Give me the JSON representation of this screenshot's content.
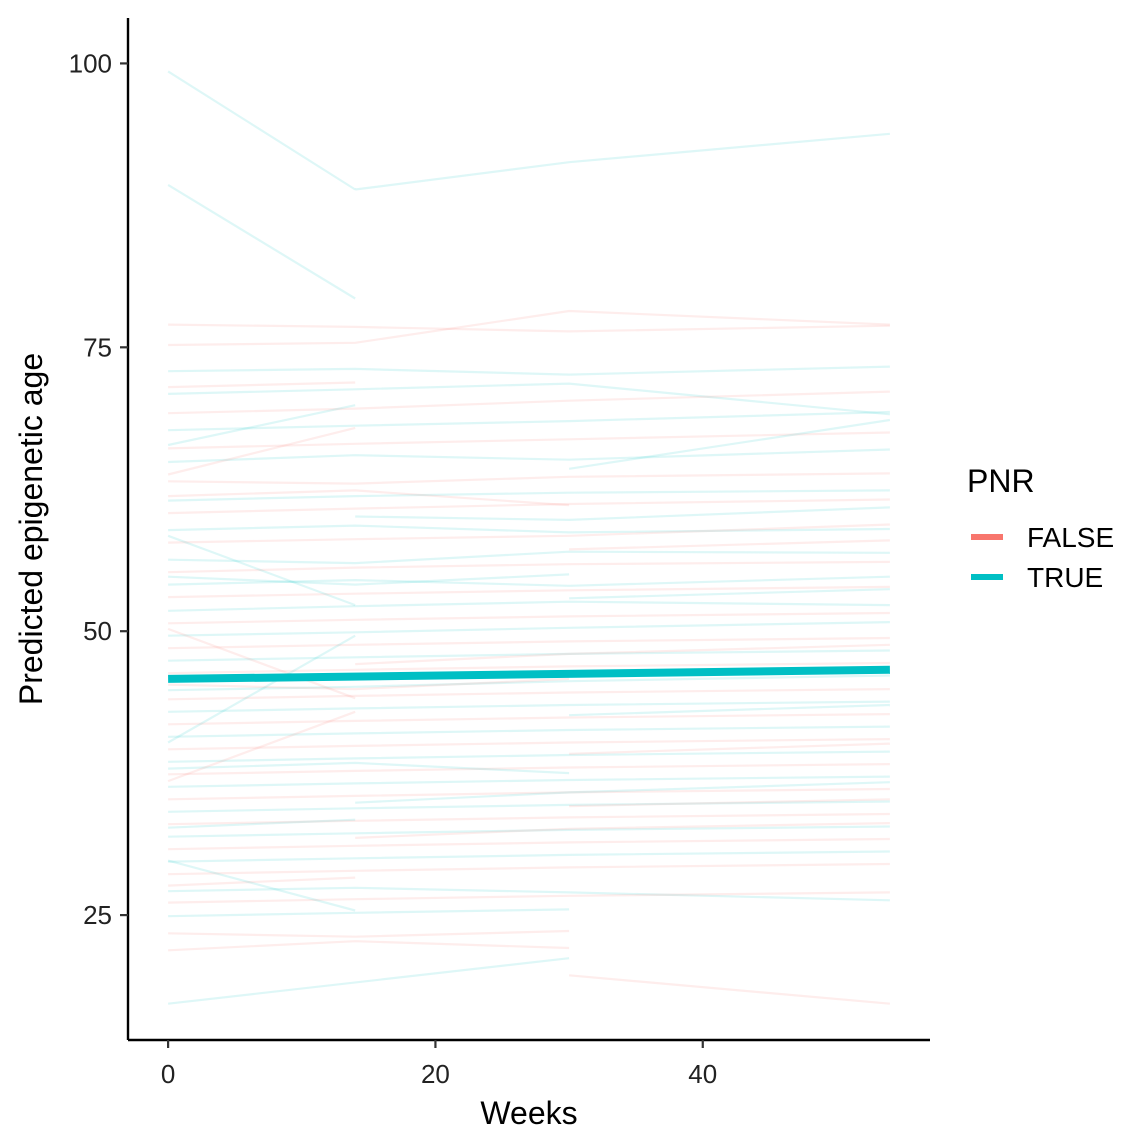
{
  "chart_data": {
    "type": "line",
    "title": "",
    "xlabel": "Weeks",
    "ylabel": "Predicted epigenetic age",
    "xlim": [
      -3,
      57
    ],
    "ylim": [
      14,
      104
    ],
    "x_ticks": [
      0,
      20,
      40
    ],
    "y_ticks": [
      25,
      50,
      75,
      100
    ],
    "grid": false,
    "legend": {
      "title": "PNR",
      "position": "right",
      "entries": [
        {
          "label": "FALSE",
          "color": "#F8766D"
        },
        {
          "label": "TRUE",
          "color": "#00BFC4"
        }
      ]
    },
    "colors": {
      "FALSE": "#F8766D",
      "TRUE": "#00BFC4"
    },
    "visits": [
      0,
      14,
      30,
      54
    ],
    "individual_line_opacity": 0.13,
    "individuals": [
      {
        "group": "TRUE",
        "x": [
          0,
          14
        ],
        "y": [
          99.3,
          88.9
        ]
      },
      {
        "group": "TRUE",
        "x": [
          14,
          30,
          54
        ],
        "y": [
          88.9,
          91.3,
          93.8
        ]
      },
      {
        "group": "TRUE",
        "x": [
          0,
          14
        ],
        "y": [
          89.3,
          79.3
        ]
      },
      {
        "group": "TRUE",
        "x": [
          0,
          30
        ],
        "y": [
          17.2,
          21.2
        ]
      },
      {
        "group": "FALSE",
        "x": [
          30,
          54
        ],
        "y": [
          19.7,
          17.2
        ]
      },
      {
        "group": "FALSE",
        "x": [
          0,
          14,
          30,
          54
        ],
        "y": [
          77.0,
          76.8,
          76.4,
          76.9
        ]
      },
      {
        "group": "FALSE",
        "x": [
          0,
          14,
          30,
          54
        ],
        "y": [
          75.2,
          75.4,
          78.2,
          77.0
        ]
      },
      {
        "group": "TRUE",
        "x": [
          0,
          14,
          30,
          54
        ],
        "y": [
          72.9,
          73.1,
          72.6,
          73.3
        ]
      },
      {
        "group": "TRUE",
        "x": [
          0,
          14,
          30,
          54
        ],
        "y": [
          70.9,
          71.3,
          71.8,
          69.1
        ]
      },
      {
        "group": "FALSE",
        "x": [
          0,
          14,
          30,
          54
        ],
        "y": [
          69.2,
          69.6,
          70.3,
          71.1
        ]
      },
      {
        "group": "TRUE",
        "x": [
          0,
          14,
          30,
          54
        ],
        "y": [
          67.7,
          68.1,
          68.5,
          69.3
        ]
      },
      {
        "group": "FALSE",
        "x": [
          0,
          14,
          30,
          54
        ],
        "y": [
          66.1,
          66.5,
          66.9,
          67.5
        ]
      },
      {
        "group": "TRUE",
        "x": [
          0,
          14,
          30,
          54
        ],
        "y": [
          64.9,
          65.5,
          65.1,
          66.0
        ]
      },
      {
        "group": "FALSE",
        "x": [
          0,
          14,
          30,
          54
        ],
        "y": [
          63.2,
          63.0,
          63.6,
          63.9
        ]
      },
      {
        "group": "TRUE",
        "x": [
          0,
          14,
          30,
          54
        ],
        "y": [
          61.5,
          61.9,
          62.2,
          62.4
        ]
      },
      {
        "group": "FALSE",
        "x": [
          0,
          14,
          30,
          54
        ],
        "y": [
          60.4,
          60.8,
          61.2,
          61.6
        ]
      },
      {
        "group": "TRUE",
        "x": [
          0,
          14,
          30,
          54
        ],
        "y": [
          58.9,
          59.3,
          58.7,
          59.0
        ]
      },
      {
        "group": "FALSE",
        "x": [
          0,
          14,
          30,
          54
        ],
        "y": [
          57.8,
          58.1,
          58.4,
          59.4
        ]
      },
      {
        "group": "TRUE",
        "x": [
          0,
          14,
          30,
          54
        ],
        "y": [
          56.3,
          56.0,
          57.0,
          56.9
        ]
      },
      {
        "group": "FALSE",
        "x": [
          0,
          14,
          30,
          54
        ],
        "y": [
          55.2,
          55.6,
          55.9,
          56.1
        ]
      },
      {
        "group": "TRUE",
        "x": [
          0,
          14,
          30,
          54
        ],
        "y": [
          54.1,
          54.5,
          54.0,
          54.8
        ]
      },
      {
        "group": "FALSE",
        "x": [
          0,
          14,
          30,
          54
        ],
        "y": [
          53.0,
          53.3,
          53.6,
          53.9
        ]
      },
      {
        "group": "TRUE",
        "x": [
          0,
          14,
          30,
          54
        ],
        "y": [
          51.8,
          52.2,
          52.6,
          52.3
        ]
      },
      {
        "group": "FALSE",
        "x": [
          0,
          14,
          30,
          54
        ],
        "y": [
          50.7,
          51.0,
          51.3,
          51.6
        ]
      },
      {
        "group": "TRUE",
        "x": [
          0,
          14,
          30,
          54
        ],
        "y": [
          49.6,
          49.9,
          50.3,
          50.8
        ]
      },
      {
        "group": "FALSE",
        "x": [
          0,
          14,
          30,
          54
        ],
        "y": [
          48.5,
          48.8,
          49.1,
          49.4
        ]
      },
      {
        "group": "TRUE",
        "x": [
          0,
          14,
          30,
          54
        ],
        "y": [
          47.4,
          47.7,
          48.0,
          48.3
        ]
      },
      {
        "group": "FALSE",
        "x": [
          0,
          14,
          30,
          54
        ],
        "y": [
          46.3,
          46.6,
          46.9,
          47.2
        ]
      },
      {
        "group": "TRUE",
        "x": [
          0,
          14,
          30,
          54
        ],
        "y": [
          44.8,
          45.1,
          45.6,
          46.1
        ]
      },
      {
        "group": "FALSE",
        "x": [
          0,
          14,
          30,
          54
        ],
        "y": [
          44.0,
          44.3,
          44.6,
          44.9
        ]
      },
      {
        "group": "TRUE",
        "x": [
          0,
          14,
          30,
          54
        ],
        "y": [
          42.9,
          43.2,
          43.5,
          43.8
        ]
      },
      {
        "group": "FALSE",
        "x": [
          0,
          14,
          30,
          54
        ],
        "y": [
          41.8,
          42.1,
          42.4,
          42.7
        ]
      },
      {
        "group": "TRUE",
        "x": [
          0,
          14,
          30,
          54
        ],
        "y": [
          40.7,
          41.0,
          41.3,
          41.6
        ]
      },
      {
        "group": "FALSE",
        "x": [
          0,
          14,
          30,
          54
        ],
        "y": [
          39.6,
          39.9,
          40.2,
          40.5
        ]
      },
      {
        "group": "TRUE",
        "x": [
          0,
          14,
          30,
          54
        ],
        "y": [
          38.5,
          38.8,
          39.1,
          39.4
        ]
      },
      {
        "group": "FALSE",
        "x": [
          0,
          14,
          30,
          54
        ],
        "y": [
          37.4,
          37.7,
          38.0,
          38.3
        ]
      },
      {
        "group": "TRUE",
        "x": [
          0,
          14,
          30,
          54
        ],
        "y": [
          36.3,
          36.6,
          36.9,
          37.2
        ]
      },
      {
        "group": "FALSE",
        "x": [
          0,
          14,
          30,
          54
        ],
        "y": [
          35.2,
          35.5,
          35.8,
          36.1
        ]
      },
      {
        "group": "TRUE",
        "x": [
          0,
          14,
          30,
          54
        ],
        "y": [
          34.1,
          34.4,
          34.7,
          35.0
        ]
      },
      {
        "group": "FALSE",
        "x": [
          0,
          14,
          30,
          54
        ],
        "y": [
          33.0,
          33.3,
          33.6,
          33.9
        ]
      },
      {
        "group": "TRUE",
        "x": [
          0,
          14,
          30,
          54
        ],
        "y": [
          31.9,
          32.2,
          32.5,
          32.8
        ]
      },
      {
        "group": "FALSE",
        "x": [
          0,
          14,
          30,
          54
        ],
        "y": [
          30.8,
          31.1,
          31.4,
          31.7
        ]
      },
      {
        "group": "TRUE",
        "x": [
          0,
          14,
          30,
          54
        ],
        "y": [
          29.7,
          30.0,
          30.3,
          30.6
        ]
      },
      {
        "group": "FALSE",
        "x": [
          0,
          14,
          30,
          54
        ],
        "y": [
          28.6,
          28.9,
          29.2,
          29.5
        ]
      },
      {
        "group": "TRUE",
        "x": [
          0,
          14,
          30,
          54
        ],
        "y": [
          27.1,
          27.4,
          27.0,
          26.3
        ]
      },
      {
        "group": "FALSE",
        "x": [
          0,
          14,
          30,
          54
        ],
        "y": [
          26.1,
          26.4,
          26.7,
          27.0
        ]
      },
      {
        "group": "TRUE",
        "x": [
          0,
          14,
          30
        ],
        "y": [
          24.9,
          25.2,
          25.5
        ]
      },
      {
        "group": "FALSE",
        "x": [
          0,
          14,
          30
        ],
        "y": [
          23.4,
          23.1,
          23.6
        ]
      },
      {
        "group": "FALSE",
        "x": [
          0,
          14,
          30
        ],
        "y": [
          21.9,
          22.7,
          22.1
        ]
      },
      {
        "group": "TRUE",
        "x": [
          0,
          14,
          30
        ],
        "y": [
          54.8,
          54.1,
          55.0
        ]
      },
      {
        "group": "FALSE",
        "x": [
          0,
          14,
          30
        ],
        "y": [
          61.9,
          62.4,
          61.1
        ]
      },
      {
        "group": "TRUE",
        "x": [
          0,
          14,
          30
        ],
        "y": [
          37.9,
          38.4,
          37.5
        ]
      },
      {
        "group": "FALSE",
        "x": [
          0,
          14,
          30
        ],
        "y": [
          45.3,
          44.9,
          45.8
        ]
      },
      {
        "group": "TRUE",
        "x": [
          0,
          14
        ],
        "y": [
          66.4,
          69.9
        ]
      },
      {
        "group": "FALSE",
        "x": [
          0,
          14
        ],
        "y": [
          71.5,
          71.9
        ]
      },
      {
        "group": "TRUE",
        "x": [
          0,
          14
        ],
        "y": [
          32.7,
          33.4
        ]
      },
      {
        "group": "FALSE",
        "x": [
          0,
          14
        ],
        "y": [
          27.6,
          28.3
        ]
      },
      {
        "group": "TRUE",
        "x": [
          0,
          14
        ],
        "y": [
          58.4,
          52.3
        ]
      },
      {
        "group": "FALSE",
        "x": [
          0,
          14
        ],
        "y": [
          36.8,
          42.9
        ]
      },
      {
        "group": "TRUE",
        "x": [
          0,
          14
        ],
        "y": [
          40.2,
          49.6
        ]
      },
      {
        "group": "FALSE",
        "x": [
          0,
          14
        ],
        "y": [
          50.2,
          44.1
        ]
      },
      {
        "group": "TRUE",
        "x": [
          0,
          14
        ],
        "y": [
          29.8,
          25.4
        ]
      },
      {
        "group": "FALSE",
        "x": [
          0,
          14
        ],
        "y": [
          63.8,
          67.9
        ]
      },
      {
        "group": "TRUE",
        "x": [
          14,
          30,
          54
        ],
        "y": [
          34.9,
          35.8,
          36.7
        ]
      },
      {
        "group": "FALSE",
        "x": [
          14,
          30,
          54
        ],
        "y": [
          47.1,
          48.0,
          48.8
        ]
      },
      {
        "group": "TRUE",
        "x": [
          14,
          30,
          54
        ],
        "y": [
          60.1,
          59.8,
          60.9
        ]
      },
      {
        "group": "FALSE",
        "x": [
          14,
          30,
          54
        ],
        "y": [
          31.8,
          32.6,
          33.1
        ]
      },
      {
        "group": "TRUE",
        "x": [
          30,
          54
        ],
        "y": [
          64.3,
          68.6
        ]
      },
      {
        "group": "FALSE",
        "x": [
          30,
          54
        ],
        "y": [
          57.2,
          58.0
        ]
      },
      {
        "group": "TRUE",
        "x": [
          30,
          54
        ],
        "y": [
          42.6,
          43.5
        ]
      },
      {
        "group": "FALSE",
        "x": [
          30,
          54
        ],
        "y": [
          34.6,
          35.2
        ]
      },
      {
        "group": "TRUE",
        "x": [
          30,
          54
        ],
        "y": [
          52.9,
          53.7
        ]
      },
      {
        "group": "FALSE",
        "x": [
          30,
          54
        ],
        "y": [
          39.2,
          40.1
        ]
      }
    ],
    "series": [
      {
        "group": "TRUE",
        "x": [
          0,
          54
        ],
        "y": [
          45.8,
          46.6
        ]
      }
    ]
  }
}
